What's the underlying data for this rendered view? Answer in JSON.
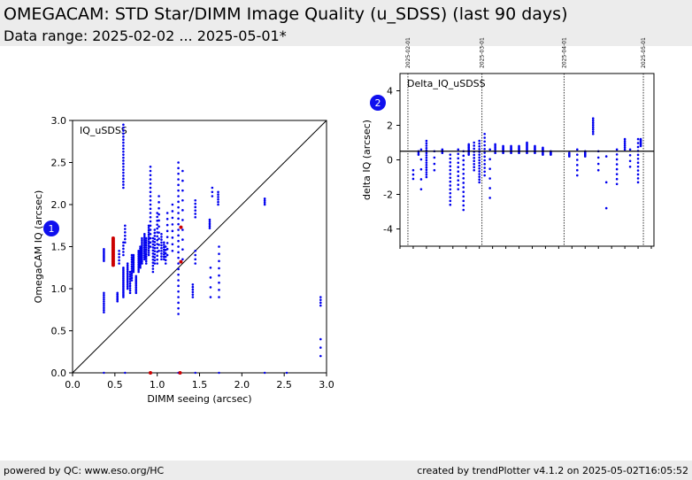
{
  "header": {
    "title": "OMEGACAM: STD Star/DIMM Image Quality (u_SDSS) (last 90 days)",
    "subtitle": "Data range: 2025-02-02 ... 2025-05-01*"
  },
  "footer": {
    "left": "powered by QC: www.eso.org/HC",
    "right": "created by trendPlotter v4.1.2 on 2025-05-02T16:05:52"
  },
  "colors": {
    "points": "#0000ee",
    "highlight": "#cc0000",
    "header_bg": "#ececec"
  },
  "chart_data": [
    {
      "type": "scatter",
      "badge": "1",
      "panel_label": "IQ_uSDSS",
      "xlabel": "DIMM seeing (arcsec)",
      "ylabel": "OmegaCAM IQ (arcsec)",
      "xlim": [
        0,
        3
      ],
      "ylim": [
        0,
        3
      ],
      "xticks": [
        "0.0",
        "0.5",
        "1.0",
        "1.5",
        "2.0",
        "2.5",
        "3.0"
      ],
      "yticks": [
        "0.0",
        "0.5",
        "1.0",
        "1.5",
        "2.0",
        "2.5",
        "3.0"
      ],
      "reference_line": "y = x",
      "clusters": [
        {
          "x": 0.37,
          "y0": 0.72,
          "y1": 0.95,
          "n": 10
        },
        {
          "x": 0.37,
          "y0": 1.33,
          "y1": 1.47,
          "n": 8
        },
        {
          "x": 0.53,
          "y0": 0.85,
          "y1": 0.95,
          "n": 6
        },
        {
          "x": 0.55,
          "y0": 1.3,
          "y1": 1.45,
          "n": 5
        },
        {
          "x": 0.6,
          "y0": 0.9,
          "y1": 1.25,
          "n": 20
        },
        {
          "x": 0.6,
          "y0": 1.4,
          "y1": 1.55,
          "n": 5
        },
        {
          "x": 0.6,
          "y0": 2.2,
          "y1": 2.95,
          "n": 22
        },
        {
          "x": 0.62,
          "y0": 1.55,
          "y1": 1.75,
          "n": 6
        },
        {
          "x": 0.65,
          "y0": 1.0,
          "y1": 1.3,
          "n": 14
        },
        {
          "x": 0.68,
          "y0": 0.95,
          "y1": 1.2,
          "n": 10
        },
        {
          "x": 0.7,
          "y0": 1.1,
          "y1": 1.4,
          "n": 12
        },
        {
          "x": 0.72,
          "y0": 1.2,
          "y1": 1.4,
          "n": 10
        },
        {
          "x": 0.75,
          "y0": 0.95,
          "y1": 1.15,
          "n": 10
        },
        {
          "x": 0.78,
          "y0": 1.2,
          "y1": 1.45,
          "n": 12
        },
        {
          "x": 0.8,
          "y0": 1.25,
          "y1": 1.5,
          "n": 12
        },
        {
          "x": 0.82,
          "y0": 1.3,
          "y1": 1.6,
          "n": 14
        },
        {
          "x": 0.85,
          "y0": 1.35,
          "y1": 1.65,
          "n": 14
        },
        {
          "x": 0.87,
          "y0": 1.3,
          "y1": 1.6,
          "n": 12
        },
        {
          "x": 0.9,
          "y0": 1.4,
          "y1": 1.75,
          "n": 14
        },
        {
          "x": 0.92,
          "y0": 1.5,
          "y1": 2.45,
          "n": 20
        },
        {
          "x": 0.95,
          "y0": 1.2,
          "y1": 1.6,
          "n": 12
        },
        {
          "x": 0.97,
          "y0": 1.3,
          "y1": 1.7,
          "n": 12
        },
        {
          "x": 1.0,
          "y0": 1.3,
          "y1": 1.9,
          "n": 14
        },
        {
          "x": 1.02,
          "y0": 1.45,
          "y1": 2.1,
          "n": 10
        },
        {
          "x": 1.05,
          "y0": 1.35,
          "y1": 1.65,
          "n": 10
        },
        {
          "x": 1.08,
          "y0": 1.35,
          "y1": 1.55,
          "n": 8
        },
        {
          "x": 1.1,
          "y0": 1.3,
          "y1": 1.5,
          "n": 6
        },
        {
          "x": 1.12,
          "y0": 1.4,
          "y1": 1.9,
          "n": 8
        },
        {
          "x": 1.18,
          "y0": 1.45,
          "y1": 2.0,
          "n": 8
        },
        {
          "x": 1.25,
          "y0": 0.7,
          "y1": 2.5,
          "n": 28
        },
        {
          "x": 1.3,
          "y0": 1.35,
          "y1": 2.4,
          "n": 10
        },
        {
          "x": 1.42,
          "y0": 0.9,
          "y1": 1.05,
          "n": 6
        },
        {
          "x": 1.45,
          "y0": 1.85,
          "y1": 2.05,
          "n": 6
        },
        {
          "x": 1.45,
          "y0": 1.3,
          "y1": 1.45,
          "n": 4
        },
        {
          "x": 1.62,
          "y0": 1.72,
          "y1": 1.82,
          "n": 5
        },
        {
          "x": 1.63,
          "y0": 0.9,
          "y1": 1.25,
          "n": 4
        },
        {
          "x": 1.65,
          "y0": 2.1,
          "y1": 2.2,
          "n": 3
        },
        {
          "x": 1.72,
          "y0": 2.0,
          "y1": 2.15,
          "n": 6
        },
        {
          "x": 1.73,
          "y0": 0.9,
          "y1": 1.5,
          "n": 8
        },
        {
          "x": 2.27,
          "y0": 2.0,
          "y1": 2.07,
          "n": 4
        },
        {
          "x": 2.93,
          "y0": 0.8,
          "y1": 0.9,
          "n": 4
        },
        {
          "x": 2.93,
          "y0": 0.2,
          "y1": 0.4,
          "n": 3
        }
      ],
      "highlight_points": [
        {
          "x": 0.48,
          "y0": 1.28,
          "y1": 1.6,
          "n": 16
        },
        {
          "x": 1.28,
          "y0": 1.32,
          "y1": 1.32,
          "n": 1
        },
        {
          "x": 1.28,
          "y0": 1.73,
          "y1": 1.73,
          "n": 1
        },
        {
          "x": 0.92,
          "y0": 0.0,
          "y1": 0.0,
          "n": 1
        },
        {
          "x": 1.27,
          "y0": 0.0,
          "y1": 0.0,
          "n": 1
        }
      ],
      "bottom_points": [
        {
          "x": 0.37,
          "y": 0.0
        },
        {
          "x": 0.62,
          "y": 0.0
        },
        {
          "x": 0.92,
          "y": 0.0
        },
        {
          "x": 1.25,
          "y": 0.0
        },
        {
          "x": 1.45,
          "y": 0.0
        },
        {
          "x": 1.73,
          "y": 0.0
        },
        {
          "x": 2.27,
          "y": 0.0
        },
        {
          "x": 2.53,
          "y": 0.0
        }
      ]
    },
    {
      "type": "scatter",
      "badge": "2",
      "panel_label": "Delta_IQ_uSDSS",
      "xlabel": "",
      "ylabel": "delta IQ (arcsec)",
      "xlim": [
        "2025-01-29",
        "2025-05-05"
      ],
      "ylim": [
        -5,
        5
      ],
      "yticks": [
        "4",
        "2",
        "0",
        "-2",
        "-4"
      ],
      "hline": 0.5,
      "date_markers": [
        "2025-02-01",
        "2025-03-01",
        "2025-04-01",
        "2025-05-01"
      ],
      "clusters": [
        {
          "x": "2025-02-03",
          "y0": -1.1,
          "y1": -0.6,
          "n": 3
        },
        {
          "x": "2025-02-05",
          "y0": 0.3,
          "y1": 0.5,
          "n": 3
        },
        {
          "x": "2025-02-06",
          "y0": -1.7,
          "y1": 0.6,
          "n": 5
        },
        {
          "x": "2025-02-08",
          "y0": -1.0,
          "y1": 1.1,
          "n": 16
        },
        {
          "x": "2025-02-11",
          "y0": -0.6,
          "y1": 0.5,
          "n": 4
        },
        {
          "x": "2025-02-14",
          "y0": 0.4,
          "y1": 0.6,
          "n": 4
        },
        {
          "x": "2025-02-17",
          "y0": -2.6,
          "y1": 0.3,
          "n": 14
        },
        {
          "x": "2025-02-20",
          "y0": -1.7,
          "y1": 0.6,
          "n": 10
        },
        {
          "x": "2025-02-22",
          "y0": -2.9,
          "y1": 0.5,
          "n": 14
        },
        {
          "x": "2025-02-24",
          "y0": 0.3,
          "y1": 0.9,
          "n": 8
        },
        {
          "x": "2025-02-26",
          "y0": -0.6,
          "y1": 1.0,
          "n": 10
        },
        {
          "x": "2025-02-28",
          "y0": -1.3,
          "y1": 1.1,
          "n": 16
        },
        {
          "x": "2025-03-02",
          "y0": -0.9,
          "y1": 1.5,
          "n": 12
        },
        {
          "x": "2025-03-04",
          "y0": -2.2,
          "y1": 0.6,
          "n": 6
        },
        {
          "x": "2025-03-06",
          "y0": 0.4,
          "y1": 0.9,
          "n": 6
        },
        {
          "x": "2025-03-09",
          "y0": 0.4,
          "y1": 0.8,
          "n": 8
        },
        {
          "x": "2025-03-12",
          "y0": 0.4,
          "y1": 0.8,
          "n": 8
        },
        {
          "x": "2025-03-15",
          "y0": 0.4,
          "y1": 0.8,
          "n": 8
        },
        {
          "x": "2025-03-18",
          "y0": 0.4,
          "y1": 1.0,
          "n": 10
        },
        {
          "x": "2025-03-21",
          "y0": 0.4,
          "y1": 0.8,
          "n": 8
        },
        {
          "x": "2025-03-24",
          "y0": 0.3,
          "y1": 0.7,
          "n": 8
        },
        {
          "x": "2025-03-27",
          "y0": 0.3,
          "y1": 0.5,
          "n": 6
        },
        {
          "x": "2025-04-03",
          "y0": 0.2,
          "y1": 0.4,
          "n": 4
        },
        {
          "x": "2025-04-06",
          "y0": -0.9,
          "y1": 0.6,
          "n": 6
        },
        {
          "x": "2025-04-09",
          "y0": 0.2,
          "y1": 0.5,
          "n": 6
        },
        {
          "x": "2025-04-12",
          "y0": 1.5,
          "y1": 2.4,
          "n": 8
        },
        {
          "x": "2025-04-14",
          "y0": -0.6,
          "y1": 0.5,
          "n": 4
        },
        {
          "x": "2025-04-17",
          "y0": -2.8,
          "y1": 0.2,
          "n": 3
        },
        {
          "x": "2025-04-21",
          "y0": -1.4,
          "y1": 0.6,
          "n": 8
        },
        {
          "x": "2025-04-24",
          "y0": 0.6,
          "y1": 1.2,
          "n": 6
        },
        {
          "x": "2025-04-26",
          "y0": -0.4,
          "y1": 0.6,
          "n": 4
        },
        {
          "x": "2025-04-29",
          "y0": -1.3,
          "y1": 1.2,
          "n": 12
        },
        {
          "x": "2025-04-30",
          "y0": 0.8,
          "y1": 1.2,
          "n": 8
        }
      ]
    }
  ]
}
